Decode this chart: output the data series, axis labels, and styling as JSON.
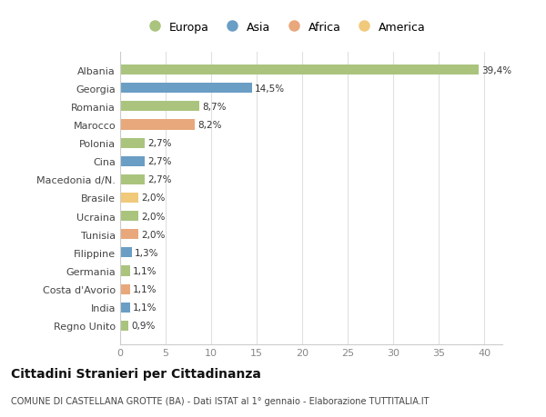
{
  "countries": [
    "Albania",
    "Georgia",
    "Romania",
    "Marocco",
    "Polonia",
    "Cina",
    "Macedonia d/N.",
    "Brasile",
    "Ucraina",
    "Tunisia",
    "Filippine",
    "Germania",
    "Costa d'Avorio",
    "India",
    "Regno Unito"
  ],
  "values": [
    39.4,
    14.5,
    8.7,
    8.2,
    2.7,
    2.7,
    2.7,
    2.0,
    2.0,
    2.0,
    1.3,
    1.1,
    1.1,
    1.1,
    0.9
  ],
  "labels": [
    "39,4%",
    "14,5%",
    "8,7%",
    "8,2%",
    "2,7%",
    "2,7%",
    "2,7%",
    "2,0%",
    "2,0%",
    "2,0%",
    "1,3%",
    "1,1%",
    "1,1%",
    "1,1%",
    "0,9%"
  ],
  "colors": [
    "#aac47e",
    "#6a9ec5",
    "#aac47e",
    "#e8a87c",
    "#aac47e",
    "#6a9ec5",
    "#aac47e",
    "#f0c97a",
    "#aac47e",
    "#e8a87c",
    "#6a9ec5",
    "#aac47e",
    "#e8a87c",
    "#6a9ec5",
    "#aac47e"
  ],
  "legend_labels": [
    "Europa",
    "Asia",
    "Africa",
    "America"
  ],
  "legend_colors": [
    "#aac47e",
    "#6a9ec5",
    "#e8a87c",
    "#f0c97a"
  ],
  "title": "Cittadini Stranieri per Cittadinanza",
  "subtitle": "COMUNE DI CASTELLANA GROTTE (BA) - Dati ISTAT al 1° gennaio - Elaborazione TUTTITALIA.IT",
  "xlim": [
    0,
    42
  ],
  "xticks": [
    0,
    5,
    10,
    15,
    20,
    25,
    30,
    35,
    40
  ],
  "background_color": "#ffffff",
  "grid_color": "#e0e0e0",
  "bar_height": 0.55
}
